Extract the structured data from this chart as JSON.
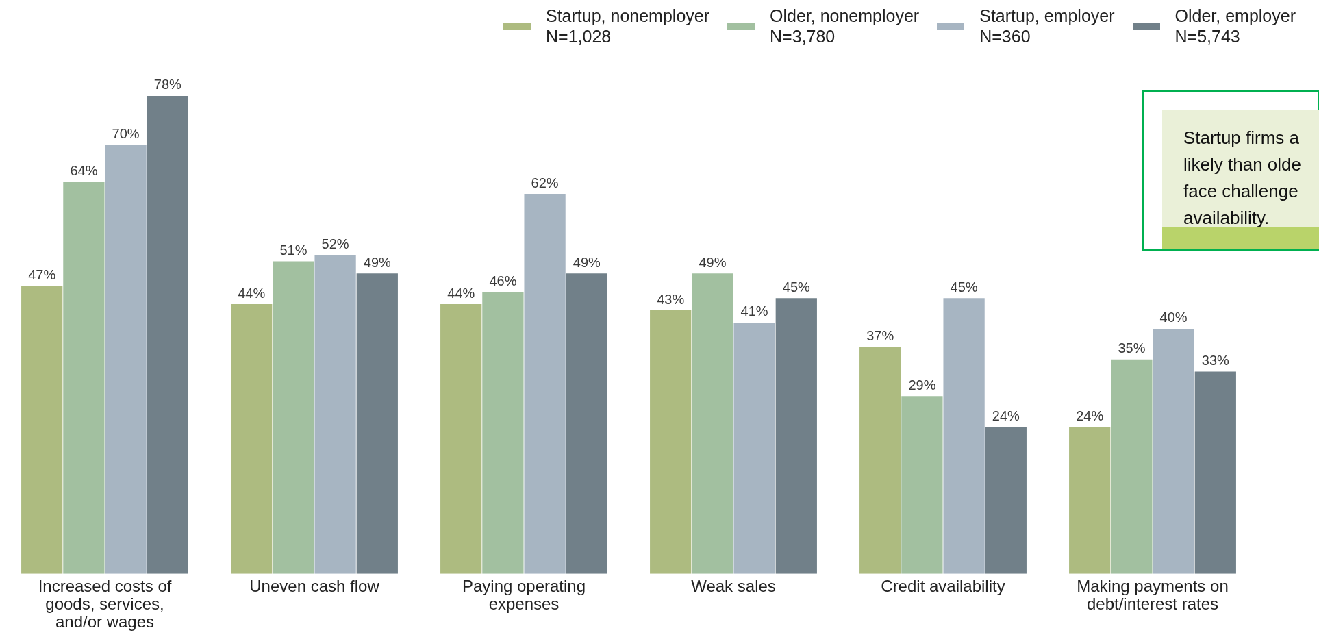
{
  "chart_data": {
    "type": "bar",
    "categories": [
      "Increased costs of goods, services, and/or wages",
      "Uneven cash flow",
      "Paying operating expenses",
      "Weak sales",
      "Credit availability",
      "Making payments on debt/interest rates"
    ],
    "series": [
      {
        "name": "Startup, nonemployer\nN=1,028",
        "color": "#adbb80",
        "values": [
          47,
          44,
          44,
          43,
          37,
          24
        ],
        "value_labels": [
          "47%",
          "44%",
          "44%",
          "43%",
          "37%",
          "24%"
        ]
      },
      {
        "name": "Older, nonemployer\nN=3,780",
        "color": "#a2c0a0",
        "values": [
          64,
          51,
          46,
          49,
          29,
          35
        ],
        "value_labels": [
          "64%",
          "51%",
          "46%",
          "49%",
          "29%",
          "35%"
        ]
      },
      {
        "name": "Startup, employer\nN=360",
        "color": "#a7b5c2",
        "values": [
          70,
          52,
          62,
          41,
          45,
          40
        ],
        "value_labels": [
          "70%",
          "52%",
          "62%",
          "41%",
          "45%",
          "40%"
        ]
      },
      {
        "name": "Older, employer\nN=5,743",
        "color": "#718089",
        "values": [
          78,
          49,
          49,
          45,
          24,
          33
        ],
        "value_labels": [
          "78%",
          "49%",
          "49%",
          "45%",
          "24%",
          "33%"
        ]
      }
    ],
    "tick_labels": "x",
    "legend": "top right",
    "annotations": [
      "Startup firms a\nlikely than olde\nface challenge\navailability."
    ]
  }
}
